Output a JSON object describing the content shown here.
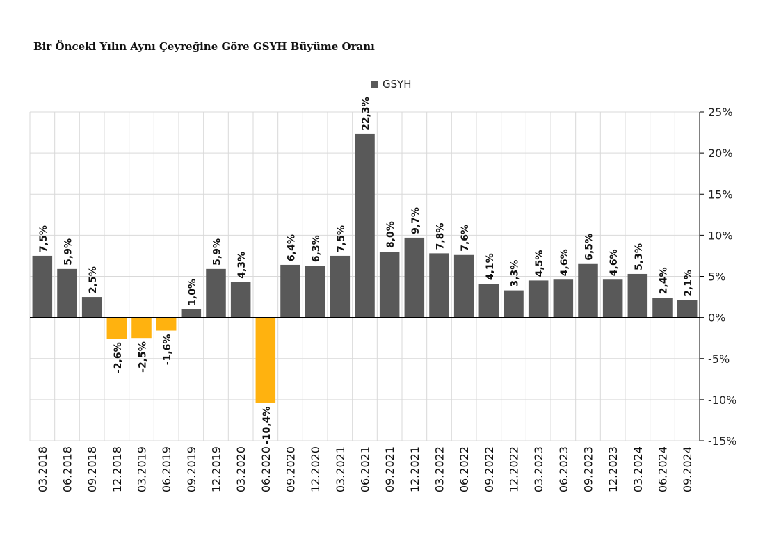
{
  "chart_data": {
    "type": "bar",
    "title": "Bir Önceki Yılın Aynı Çeyreğine Göre GSYH Büyüme Oranı",
    "xlabel": "",
    "ylabel": "",
    "ylim": [
      -15,
      25
    ],
    "yticks": [
      25,
      20,
      15,
      10,
      5,
      0,
      -5,
      -10,
      -15
    ],
    "ytick_labels": [
      "25%",
      "20%",
      "15%",
      "10%",
      "5%",
      "0%",
      "-5%",
      "-10%",
      "-15%"
    ],
    "y_axis_position": "right",
    "grid": true,
    "legend_position": "top-center",
    "categories": [
      "03.2018",
      "06.2018",
      "09.2018",
      "12.2018",
      "03.2019",
      "06.2019",
      "09.2019",
      "12.2019",
      "03.2020",
      "06.2020",
      "09.2020",
      "12.2020",
      "03.2021",
      "06.2021",
      "09.2021",
      "12.2021",
      "03.2022",
      "06.2022",
      "09.2022",
      "12.2022",
      "03.2023",
      "06.2023",
      "09.2023",
      "12.2023",
      "03.2024",
      "06.2024",
      "09.2024"
    ],
    "series": [
      {
        "name": "GSYH",
        "values": [
          7.5,
          5.9,
          2.5,
          -2.6,
          -2.5,
          -1.6,
          1.0,
          5.9,
          4.3,
          -10.4,
          6.4,
          6.3,
          7.5,
          22.3,
          8.0,
          9.7,
          7.8,
          7.6,
          4.1,
          3.3,
          4.5,
          4.6,
          6.5,
          4.6,
          5.3,
          2.4,
          2.1
        ],
        "labels": [
          "7,5%",
          "5,9%",
          "2,5%",
          "-2,6%",
          "-2,5%",
          "-1,6%",
          "1,0%",
          "5,9%",
          "4,3%",
          "-10,4%",
          "6,4%",
          "6,3%",
          "7,5%",
          "22,3%",
          "8,0%",
          "9,7%",
          "7,8%",
          "7,6%",
          "4,1%",
          "3,3%",
          "4,5%",
          "4,6%",
          "6,5%",
          "4,6%",
          "5,3%",
          "2,4%",
          "2,1%"
        ]
      }
    ],
    "colors": {
      "positive": "#595959",
      "negative": "#FFB20F",
      "grid": "#D9D9D9",
      "axis": "#000000"
    }
  }
}
